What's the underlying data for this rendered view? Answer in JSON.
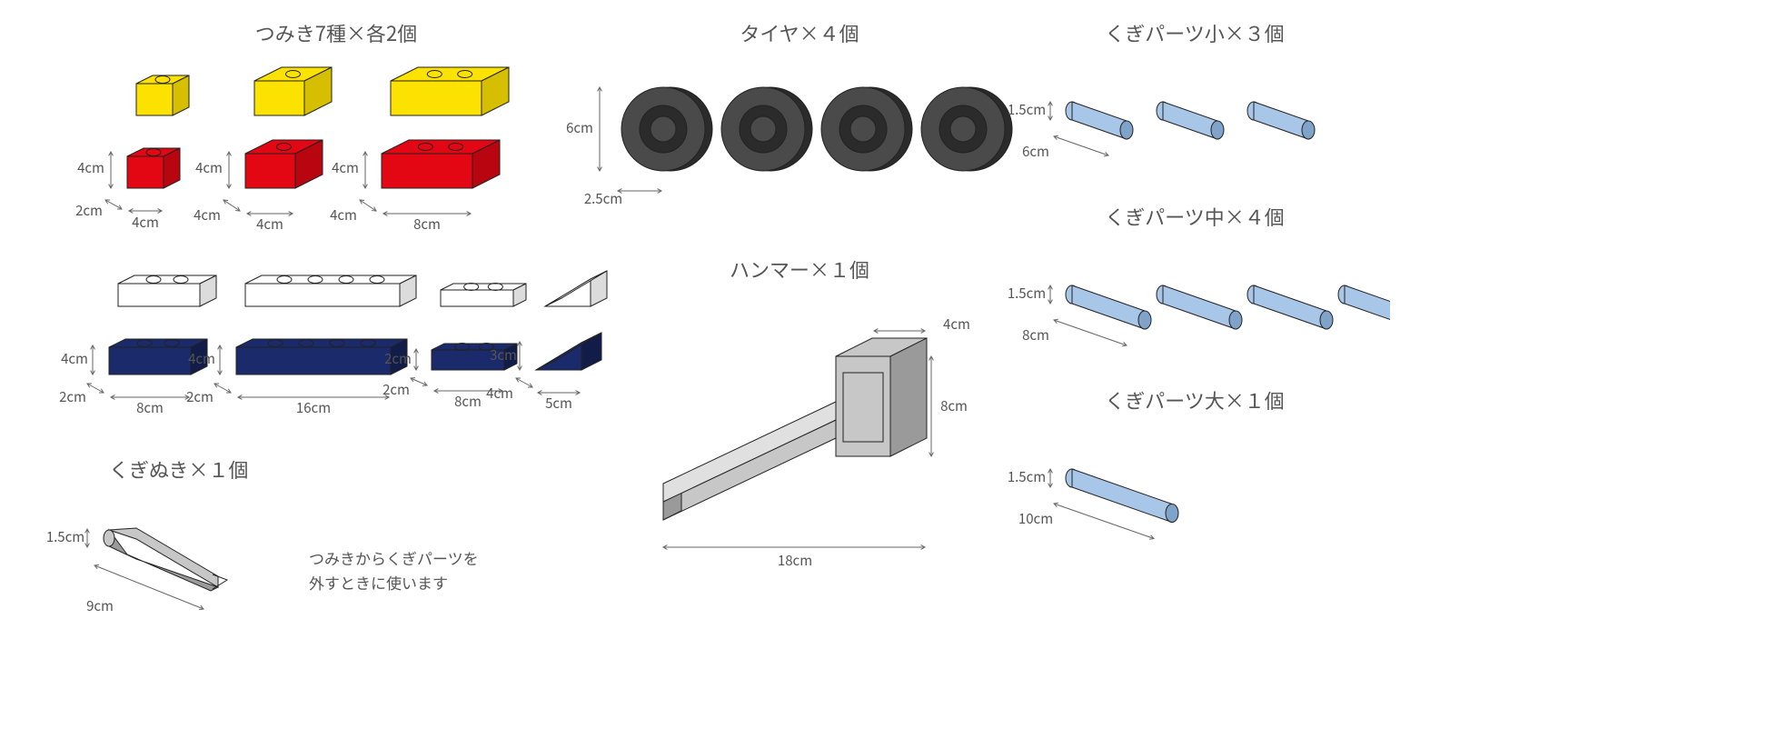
{
  "colors": {
    "yellow": "#fce200",
    "yellow_dark": "#d6bf00",
    "red": "#e30613",
    "red_dark": "#b80510",
    "white": "#ffffff",
    "white_dark": "#dcdcdc",
    "navy": "#1b2a6b",
    "navy_dark": "#121c48",
    "tire": "#2b2b2b",
    "tire_mid": "#4a4a4a",
    "metal": "#c7c7c7",
    "metal_dark": "#9a9a9a",
    "peg": "#a8c7e8",
    "peg_dark": "#7fa3c9",
    "stroke": "#222222",
    "dim_line": "#666666",
    "text": "#555555"
  },
  "sections": {
    "blocks": {
      "title": "つみき7種×各2個"
    },
    "tires": {
      "title": "タイヤ×４個",
      "count": 4,
      "dim_h": "6cm",
      "dim_w": "2.5cm"
    },
    "hammer": {
      "title": "ハンマー×１個",
      "dim_w": "4cm",
      "dim_h": "8cm",
      "dim_l": "18cm"
    },
    "peg_s": {
      "title": "くぎパーツ小×３個",
      "count": 3,
      "dim_d": "1.5cm",
      "dim_l": "6cm"
    },
    "peg_m": {
      "title": "くぎパーツ中×４個",
      "count": 4,
      "dim_d": "1.5cm",
      "dim_l": "8cm"
    },
    "peg_l": {
      "title": "くぎパーツ大×１個",
      "count": 1,
      "dim_d": "1.5cm",
      "dim_l": "10cm"
    },
    "puller": {
      "title": "くぎぬき×１個",
      "dim_d": "1.5cm",
      "dim_l": "9cm",
      "caption_line1": "つみきからくぎパーツを",
      "caption_line2": "外すときに使います"
    }
  },
  "blocks": {
    "row1_dims": {
      "h": "4cm",
      "d_a": "2cm",
      "w_a": "4cm",
      "d_b": "4cm",
      "w_b": "4cm",
      "d_c": "4cm",
      "w_c": "8cm"
    },
    "row2_dims": {
      "h": "4cm",
      "d_a": "2cm",
      "w_a": "8cm",
      "d_b": "2cm",
      "w_b": "16cm",
      "d_c": "2cm",
      "w_c": "8cm",
      "tri_h": "3cm",
      "tri_d": "4cm",
      "tri_w": "5cm"
    }
  }
}
